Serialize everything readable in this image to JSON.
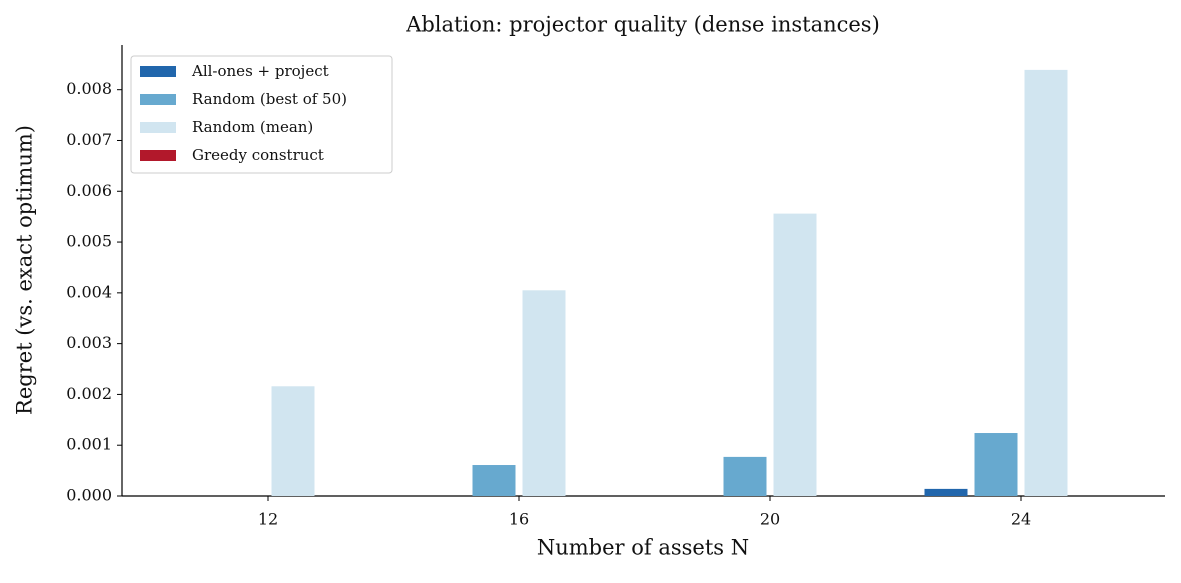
{
  "chart_data": {
    "type": "bar",
    "title": "Ablation: projector quality (dense instances)",
    "x_label": "Number of assets N",
    "y_label": "Regret (vs. exact optimum)",
    "categories": [
      "12",
      "16",
      "20",
      "24"
    ],
    "series": [
      {
        "name": "All-ones + project",
        "color": "#2166ac",
        "values": [
          0,
          0,
          0,
          0.00014
        ]
      },
      {
        "name": "Random (best of 50)",
        "color": "#67a9cf",
        "values": [
          0,
          0.00061,
          0.00077,
          0.00124
        ]
      },
      {
        "name": "Random (mean)",
        "color": "#d1e5f0",
        "values": [
          0.00216,
          0.00405,
          0.00556,
          0.00839
        ]
      },
      {
        "name": "Greedy construct",
        "color": "#b2182b",
        "values": [
          0,
          0,
          0,
          0
        ]
      }
    ],
    "ylim": [
      0,
      0.00888
    ],
    "yticks": [
      {
        "value": 0,
        "label": "0.000"
      },
      {
        "value": 0.001,
        "label": "0.001"
      },
      {
        "value": 0.002,
        "label": "0.002"
      },
      {
        "value": 0.003,
        "label": "0.003"
      },
      {
        "value": 0.004,
        "label": "0.004"
      },
      {
        "value": 0.005,
        "label": "0.005"
      },
      {
        "value": 0.006,
        "label": "0.006"
      },
      {
        "value": 0.007,
        "label": "0.007"
      },
      {
        "value": 0.008,
        "label": "0.008"
      }
    ],
    "legend": "upper left"
  }
}
